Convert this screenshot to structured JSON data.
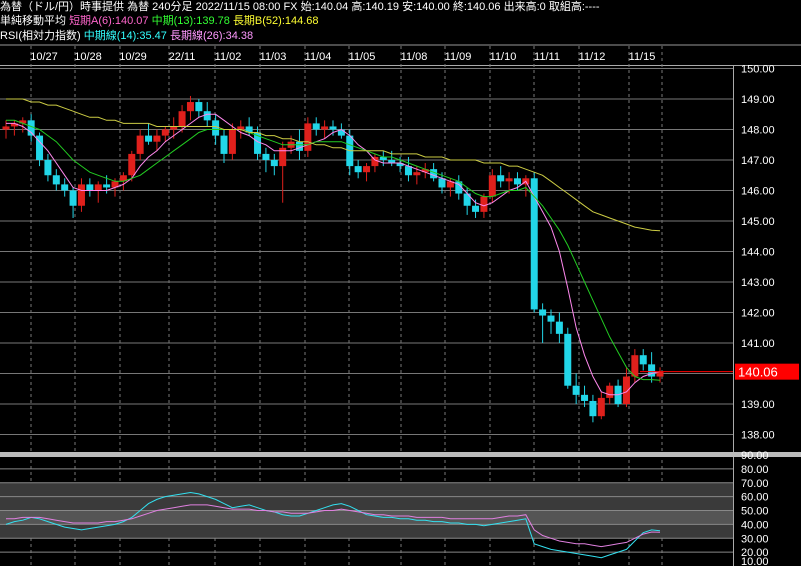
{
  "header": {
    "line1": "為替（ドル/円）時事提供 為替 240分足 2022/11/15 08:00 FX 始:140.04 高:140.19 安:140.00 終:140.06 出来高:0 取組高:----",
    "sma_label": "単純移動平均",
    "sma_short": "短期A(6):140.07",
    "sma_mid": "中期(13):139.78",
    "sma_long": "長期B(52):144.68",
    "rsi_label": "RSI(相対力指数)",
    "rsi_mid": "中期線(14):35.47",
    "rsi_long": "長期線(26):34.38"
  },
  "colors": {
    "up": "#e0201c",
    "down": "#22d6e8",
    "sma_short": "#ff88ee",
    "sma_mid": "#22cc22",
    "sma_long": "#cccc44",
    "rsi_mid": "#33e0f0",
    "rsi_long": "#e080e0",
    "last_price_bg": "#ff0000",
    "grid": "#777777"
  },
  "chart_data": [
    {
      "type": "candlestick",
      "x_labels": [
        "10/27",
        "10/28",
        "10/29",
        "22/11",
        "11/02",
        "11/03",
        "11/04",
        "11/05",
        "11/08",
        "11/09",
        "11/10",
        "11/11",
        "11/12",
        "11/15"
      ],
      "y_ticks": [
        "150.00",
        "149.00",
        "148.00",
        "147.00",
        "146.00",
        "145.00",
        "144.00",
        "143.00",
        "142.00",
        "141.00",
        "140.00",
        "139.00",
        "138.00"
      ],
      "ylim": [
        137.6,
        150.1
      ],
      "last_price": "140.06",
      "candles": [
        [
          148.0,
          148.3,
          147.7,
          148.1
        ],
        [
          148.1,
          148.3,
          147.8,
          148.2
        ],
        [
          148.2,
          148.4,
          147.9,
          148.3
        ],
        [
          148.3,
          148.5,
          147.6,
          147.8
        ],
        [
          147.8,
          147.9,
          146.8,
          147.0
        ],
        [
          147.0,
          147.2,
          146.3,
          146.5
        ],
        [
          146.5,
          146.7,
          146.0,
          146.2
        ],
        [
          146.2,
          146.4,
          145.8,
          146.0
        ],
        [
          146.0,
          146.1,
          145.1,
          145.5
        ],
        [
          145.5,
          146.4,
          145.3,
          146.2
        ],
        [
          146.2,
          146.4,
          145.8,
          146.0
        ],
        [
          146.0,
          146.3,
          145.6,
          146.2
        ],
        [
          146.2,
          146.5,
          145.9,
          146.1
        ],
        [
          146.1,
          146.4,
          145.8,
          146.3
        ],
        [
          146.3,
          146.6,
          146.0,
          146.5
        ],
        [
          146.5,
          147.3,
          146.3,
          147.2
        ],
        [
          147.2,
          148.0,
          147.0,
          147.8
        ],
        [
          147.8,
          148.2,
          147.5,
          147.6
        ],
        [
          147.6,
          148.0,
          147.3,
          147.8
        ],
        [
          147.8,
          148.1,
          147.6,
          148.0
        ],
        [
          148.0,
          148.4,
          147.7,
          148.1
        ],
        [
          148.1,
          148.8,
          147.9,
          148.6
        ],
        [
          148.6,
          149.1,
          148.3,
          148.9
        ],
        [
          148.9,
          149.0,
          148.4,
          148.6
        ],
        [
          148.6,
          148.9,
          148.1,
          148.3
        ],
        [
          148.3,
          148.5,
          147.5,
          147.8
        ],
        [
          147.8,
          148.0,
          146.9,
          147.2
        ],
        [
          147.2,
          148.2,
          147.0,
          148.0
        ],
        [
          148.0,
          148.3,
          147.7,
          148.1
        ],
        [
          148.1,
          148.4,
          147.8,
          147.9
        ],
        [
          147.9,
          148.1,
          147.0,
          147.2
        ],
        [
          147.2,
          147.4,
          146.6,
          147.0
        ],
        [
          147.0,
          147.2,
          146.5,
          146.8
        ],
        [
          146.8,
          147.6,
          145.6,
          147.4
        ],
        [
          147.4,
          147.8,
          147.2,
          147.6
        ],
        [
          147.6,
          148.0,
          147.0,
          147.3
        ],
        [
          147.3,
          148.4,
          147.1,
          148.2
        ],
        [
          148.2,
          148.4,
          147.8,
          148.0
        ],
        [
          148.0,
          148.3,
          147.7,
          148.1
        ],
        [
          148.1,
          148.3,
          147.8,
          148.0
        ],
        [
          148.0,
          148.2,
          147.7,
          147.8
        ],
        [
          147.8,
          148.0,
          146.5,
          146.8
        ],
        [
          146.8,
          147.0,
          146.4,
          146.6
        ],
        [
          146.6,
          146.9,
          146.3,
          146.8
        ],
        [
          146.8,
          147.2,
          146.6,
          147.1
        ],
        [
          147.1,
          147.3,
          146.8,
          147.0
        ],
        [
          147.0,
          147.3,
          146.8,
          146.9
        ],
        [
          146.9,
          147.1,
          146.6,
          146.8
        ],
        [
          146.8,
          147.1,
          146.3,
          146.5
        ],
        [
          146.5,
          146.8,
          146.2,
          146.6
        ],
        [
          146.6,
          146.9,
          146.4,
          146.7
        ],
        [
          146.7,
          146.9,
          146.3,
          146.4
        ],
        [
          146.4,
          146.6,
          145.9,
          146.1
        ],
        [
          146.1,
          146.4,
          145.8,
          146.3
        ],
        [
          146.3,
          146.5,
          145.7,
          145.9
        ],
        [
          145.9,
          146.1,
          145.2,
          145.5
        ],
        [
          145.5,
          145.7,
          145.1,
          145.3
        ],
        [
          145.3,
          145.9,
          145.1,
          145.8
        ],
        [
          145.8,
          146.7,
          145.6,
          146.5
        ],
        [
          146.5,
          146.8,
          146.1,
          146.3
        ],
        [
          146.3,
          146.6,
          145.9,
          146.4
        ],
        [
          146.4,
          146.6,
          146.0,
          146.2
        ],
        [
          146.2,
          146.5,
          145.8,
          146.4
        ],
        [
          146.4,
          146.6,
          142.0,
          142.1
        ],
        [
          142.1,
          142.3,
          141.0,
          141.9
        ],
        [
          141.9,
          142.1,
          141.3,
          141.7
        ],
        [
          141.7,
          142.0,
          141.0,
          141.3
        ],
        [
          141.3,
          141.5,
          139.5,
          139.6
        ],
        [
          139.6,
          140.0,
          139.0,
          139.3
        ],
        [
          139.3,
          139.6,
          138.9,
          139.1
        ],
        [
          139.1,
          139.3,
          138.4,
          138.6
        ],
        [
          138.6,
          139.4,
          138.5,
          139.2
        ],
        [
          139.2,
          139.7,
          139.0,
          139.6
        ],
        [
          139.6,
          139.8,
          138.9,
          139.0
        ],
        [
          139.0,
          140.2,
          138.9,
          139.9
        ],
        [
          139.9,
          140.8,
          139.7,
          140.6
        ],
        [
          140.6,
          140.8,
          140.1,
          140.3
        ],
        [
          140.3,
          140.7,
          139.7,
          139.9
        ],
        [
          139.9,
          140.2,
          139.7,
          140.06
        ]
      ],
      "series": [
        {
          "name": "短期A(6)",
          "values": [
            148.2,
            148.2,
            148.1,
            147.9,
            147.6,
            147.3,
            146.9,
            146.5,
            146.1,
            146.0,
            146.0,
            146.0,
            146.0,
            146.1,
            146.2,
            146.4,
            146.8,
            147.1,
            147.3,
            147.6,
            147.8,
            148.0,
            148.2,
            148.4,
            148.5,
            148.5,
            148.3,
            148.1,
            147.9,
            147.8,
            147.6,
            147.5,
            147.3,
            147.3,
            147.3,
            147.4,
            147.5,
            147.6,
            147.7,
            147.9,
            148.0,
            147.8,
            147.5,
            147.3,
            147.0,
            146.9,
            146.9,
            146.9,
            146.8,
            146.7,
            146.6,
            146.5,
            146.4,
            146.3,
            146.2,
            145.9,
            145.6,
            145.5,
            145.6,
            145.8,
            146.0,
            146.1,
            146.3,
            145.8,
            145.3,
            144.8,
            144.0,
            142.8,
            141.5,
            140.6,
            139.9,
            139.4,
            139.3,
            139.3,
            139.4,
            139.7,
            139.9,
            140.0,
            140.07
          ]
        },
        {
          "name": "中期(13)",
          "values": [
            148.3,
            148.3,
            148.2,
            148.1,
            148.0,
            147.8,
            147.6,
            147.3,
            147.0,
            146.8,
            146.6,
            146.5,
            146.4,
            146.3,
            146.3,
            146.4,
            146.5,
            146.7,
            146.9,
            147.1,
            147.3,
            147.5,
            147.7,
            147.9,
            148.0,
            148.0,
            148.0,
            148.0,
            148.0,
            147.9,
            147.8,
            147.7,
            147.6,
            147.5,
            147.5,
            147.5,
            147.5,
            147.6,
            147.6,
            147.6,
            147.6,
            147.5,
            147.4,
            147.3,
            147.2,
            147.1,
            147.1,
            147.0,
            146.9,
            146.8,
            146.7,
            146.6,
            146.5,
            146.4,
            146.3,
            146.1,
            145.9,
            145.8,
            145.8,
            145.9,
            146.0,
            146.0,
            146.1,
            145.8,
            145.5,
            145.1,
            144.7,
            144.2,
            143.6,
            143.0,
            142.4,
            141.8,
            141.2,
            140.7,
            140.2,
            139.9,
            139.8,
            139.8,
            139.78
          ]
        },
        {
          "name": "長期B(52)",
          "values": [
            149.0,
            149.0,
            149.0,
            148.9,
            148.9,
            148.8,
            148.8,
            148.7,
            148.6,
            148.5,
            148.4,
            148.4,
            148.3,
            148.3,
            148.2,
            148.2,
            148.2,
            148.2,
            148.1,
            148.1,
            148.1,
            148.1,
            148.1,
            148.1,
            148.1,
            148.1,
            148.0,
            148.0,
            148.0,
            147.9,
            147.9,
            147.8,
            147.8,
            147.7,
            147.7,
            147.6,
            147.6,
            147.5,
            147.5,
            147.4,
            147.4,
            147.3,
            147.3,
            147.3,
            147.3,
            147.3,
            147.2,
            147.2,
            147.2,
            147.2,
            147.1,
            147.1,
            147.1,
            147.0,
            147.0,
            147.0,
            147.0,
            146.9,
            146.9,
            146.9,
            146.8,
            146.8,
            146.7,
            146.6,
            146.5,
            146.3,
            146.1,
            145.9,
            145.7,
            145.5,
            145.3,
            145.2,
            145.1,
            145.0,
            144.9,
            144.8,
            144.75,
            144.7,
            144.68
          ]
        }
      ]
    },
    {
      "type": "line",
      "title": "RSI(相対力指数)",
      "y_ticks": [
        "90.00",
        "80.00",
        "70.00",
        "60.00",
        "50.00",
        "40.00",
        "30.00",
        "20.00",
        "10.00"
      ],
      "ylim": [
        10,
        90
      ],
      "series": [
        {
          "name": "中期線(14)",
          "values": [
            40,
            42,
            43,
            45,
            44,
            42,
            40,
            38,
            37,
            36,
            37,
            38,
            39,
            40,
            42,
            45,
            50,
            55,
            58,
            60,
            61,
            62,
            63,
            62,
            60,
            58,
            55,
            52,
            53,
            54,
            52,
            50,
            49,
            47,
            46,
            46,
            48,
            50,
            52,
            54,
            55,
            53,
            50,
            47,
            46,
            45,
            45,
            44,
            44,
            43,
            43,
            42,
            42,
            41,
            41,
            40,
            40,
            39,
            40,
            41,
            42,
            43,
            44,
            26,
            24,
            22,
            21,
            20,
            19,
            18,
            17,
            16,
            18,
            20,
            22,
            28,
            34,
            36,
            35.47
          ]
        },
        {
          "name": "長期線(26)",
          "values": [
            44,
            44,
            45,
            45,
            45,
            44,
            43,
            42,
            41,
            41,
            41,
            41,
            42,
            42,
            43,
            44,
            46,
            48,
            50,
            51,
            52,
            53,
            54,
            54,
            54,
            53,
            52,
            51,
            51,
            51,
            50,
            50,
            49,
            49,
            48,
            48,
            48,
            49,
            50,
            50,
            51,
            50,
            49,
            48,
            47,
            47,
            46,
            46,
            46,
            45,
            45,
            45,
            45,
            44,
            44,
            44,
            44,
            44,
            44,
            45,
            46,
            46,
            47,
            36,
            32,
            30,
            28,
            27,
            26,
            26,
            25,
            24,
            25,
            26,
            27,
            30,
            33,
            34.5,
            34.38
          ]
        }
      ]
    }
  ]
}
